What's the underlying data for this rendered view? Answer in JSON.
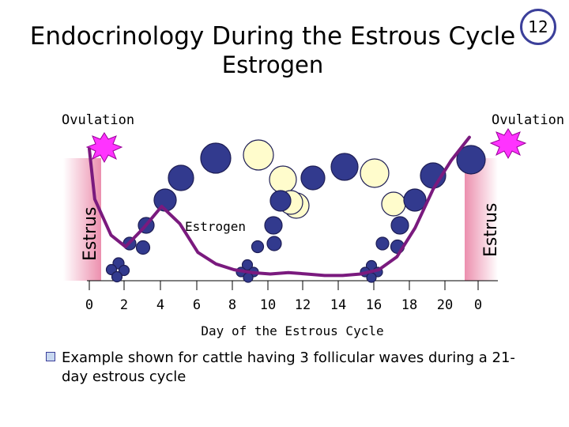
{
  "slide": {
    "title": "Endocrinology During the Estrous Cycle",
    "subtitle": "Estrogen",
    "number": "12"
  },
  "labels": {
    "ovulation_left": "Ovulation",
    "ovulation_right": "Ovulation",
    "estrus_left": "Estrus",
    "estrus_right": "Estrus",
    "estrogen_curve": "Estrogen",
    "xlabel": "Day of the Estrous Cycle"
  },
  "note": "Example shown for cattle having 3 follicular waves during a 21-day estrous cycle",
  "colors": {
    "curve": "#7a1a7e",
    "follicle_dark": "#323a8e",
    "follicle_pale": "#fffccc",
    "ovulation_burst": "#ff33ff",
    "estrus_band": "#f0a0b8"
  },
  "chart_data": {
    "type": "line",
    "x_ticks": [
      "0",
      "2",
      "4",
      "6",
      "8",
      "10",
      "12",
      "14",
      "16",
      "18",
      "20",
      "0"
    ],
    "series": [
      {
        "name": "Estrogen",
        "points": [
          [
            0,
            0.9
          ],
          [
            0.3,
            0.55
          ],
          [
            1.2,
            0.3
          ],
          [
            2,
            0.22
          ],
          [
            3,
            0.35
          ],
          [
            4,
            0.5
          ],
          [
            5,
            0.38
          ],
          [
            6,
            0.18
          ],
          [
            7,
            0.1
          ],
          [
            8,
            0.06
          ],
          [
            9,
            0.04
          ],
          [
            10,
            0.03
          ],
          [
            11,
            0.04
          ],
          [
            12,
            0.03
          ],
          [
            13,
            0.02
          ],
          [
            14,
            0.02
          ],
          [
            15,
            0.03
          ],
          [
            16,
            0.06
          ],
          [
            17,
            0.15
          ],
          [
            18,
            0.35
          ],
          [
            19,
            0.62
          ],
          [
            20,
            0.82
          ],
          [
            21,
            0.98
          ]
        ]
      }
    ]
  }
}
